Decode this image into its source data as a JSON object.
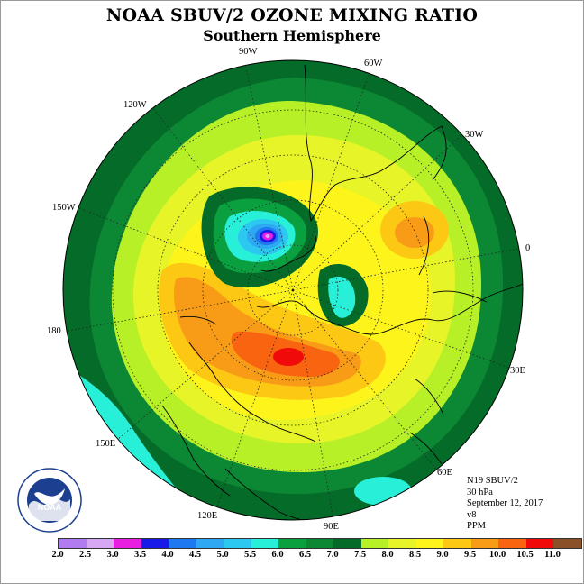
{
  "title": "NOAA SBUV/2 OZONE MIXING RATIO",
  "subtitle": "Southern Hemisphere",
  "longitude_labels": [
    "90W",
    "60W",
    "30W",
    "0",
    "30E",
    "60E",
    "90E",
    "120E",
    "150E",
    "180",
    "150W",
    "120W"
  ],
  "info": {
    "satellite": "N19 SBUV/2",
    "level": "30 hPa",
    "date": "September 12, 2017",
    "version": "v8",
    "units": "PPM"
  },
  "logo_text": "NOAA",
  "colorbar": {
    "ticks": [
      "2.0",
      "2.5",
      "3.0",
      "3.5",
      "4.0",
      "4.5",
      "5.0",
      "5.5",
      "6.0",
      "6.5",
      "7.0",
      "7.5",
      "8.0",
      "8.5",
      "9.0",
      "9.5",
      "10.0",
      "10.5",
      "11.0"
    ],
    "colors": [
      "#b07cf0",
      "#d6a8f4",
      "#e81ee0",
      "#1a1ae8",
      "#1e78f0",
      "#2ea8f2",
      "#2cc8f0",
      "#28f0d8",
      "#0aa040",
      "#0c8834",
      "#046c28",
      "#b8f028",
      "#e6f428",
      "#fcf41a",
      "#fcc814",
      "#f89c18",
      "#f86410",
      "#f00a0a",
      "#8c5028"
    ]
  }
}
